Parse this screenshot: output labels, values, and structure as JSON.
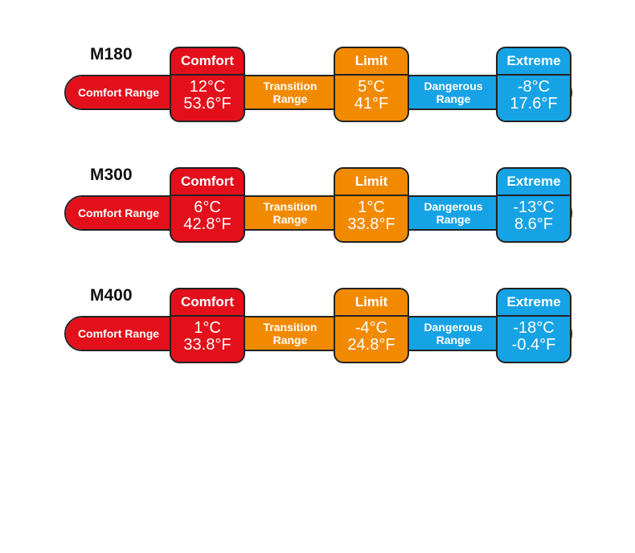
{
  "colors": {
    "comfort": "#e3101b",
    "limit": "#f28a00",
    "extreme": "#16a3e5"
  },
  "rows": [
    {
      "model": "M180",
      "comfort_range": "Comfort Range",
      "comfort_label": "Comfort",
      "comfort_c": "12°C",
      "comfort_f": "53.6°F",
      "transition": "Transition Range",
      "limit_label": "Limit",
      "limit_c": "5°C",
      "limit_f": "41°F",
      "dangerous": "Dangerous Range",
      "extreme_label": "Extreme",
      "extreme_c": "-8°C",
      "extreme_f": "17.6°F"
    },
    {
      "model": "M300",
      "comfort_range": "Comfort Range",
      "comfort_label": "Comfort",
      "comfort_c": "6°C",
      "comfort_f": "42.8°F",
      "transition": "Transition Range",
      "limit_label": "Limit",
      "limit_c": "1°C",
      "limit_f": "33.8°F",
      "dangerous": "Dangerous Range",
      "extreme_label": "Extreme",
      "extreme_c": "-13°C",
      "extreme_f": "8.6°F"
    },
    {
      "model": "M400",
      "comfort_range": "Comfort Range",
      "comfort_label": "Comfort",
      "comfort_c": "1°C",
      "comfort_f": "33.8°F",
      "transition": "Transition Range",
      "limit_label": "Limit",
      "limit_c": "-4°C",
      "limit_f": "24.8°F",
      "dangerous": "Dangerous Range",
      "extreme_label": "Extreme",
      "extreme_c": "-18°C",
      "extreme_f": "-0.4°F"
    }
  ]
}
